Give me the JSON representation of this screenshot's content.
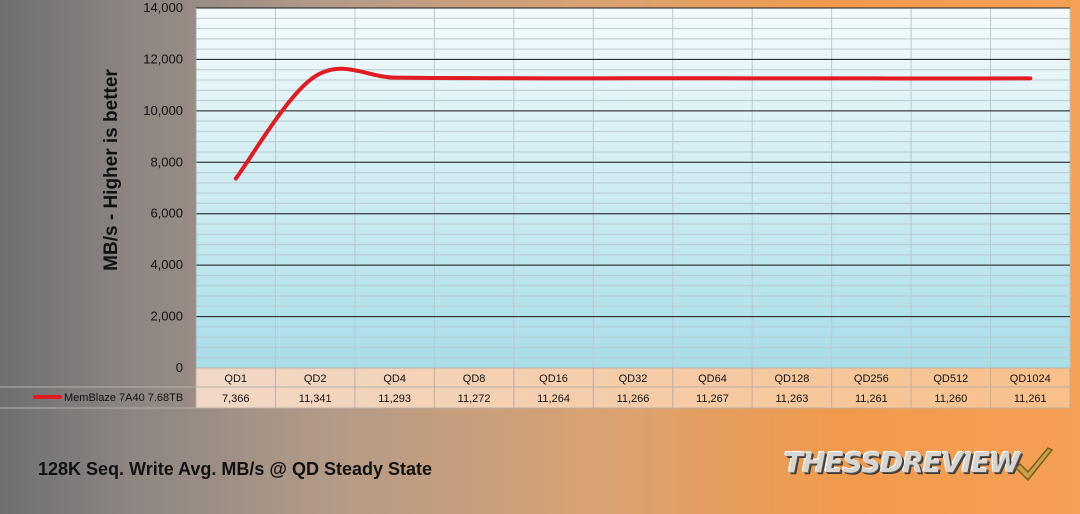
{
  "chart_data": {
    "type": "line",
    "title": "128K Seq. Write Avg. MB/s @ QD Steady State",
    "xlabel": "",
    "ylabel": "MB/s - Higher is better",
    "categories": [
      "QD1",
      "QD2",
      "QD4",
      "QD8",
      "QD16",
      "QD32",
      "QD64",
      "QD128",
      "QD256",
      "QD512",
      "QD1024"
    ],
    "series": [
      {
        "name": "MemBlaze 7A40 7.68TB",
        "color": "#e01b22",
        "values": [
          7366,
          11341,
          11293,
          11272,
          11264,
          11266,
          11267,
          11263,
          11261,
          11260,
          11261
        ],
        "value_labels": [
          "7,366",
          "11,341",
          "11,293",
          "11,272",
          "11,264",
          "11,266",
          "11,267",
          "11,263",
          "11,261",
          "11,260",
          "11,261"
        ]
      }
    ],
    "ylim": [
      0,
      14000
    ],
    "yticks": [
      0,
      2000,
      4000,
      6000,
      8000,
      10000,
      12000,
      14000
    ],
    "ytick_labels": [
      "0",
      "2,000",
      "4,000",
      "6,000",
      "8,000",
      "10,000",
      "12,000",
      "14,000"
    ],
    "grid": true,
    "data_table": true,
    "legend": "data-table-left"
  },
  "footer": {
    "title": "128K Seq. Write Avg. MB/s @ QD Steady State",
    "logo_text": "THESSDREVIEW"
  },
  "colors": {
    "plot_bg_top": "#f4fbfd",
    "plot_bg_bottom": "#a8dde8",
    "grid_major": "#1c1c1c",
    "grid_minor": "#b9c9cf",
    "line": "#e01b22"
  }
}
